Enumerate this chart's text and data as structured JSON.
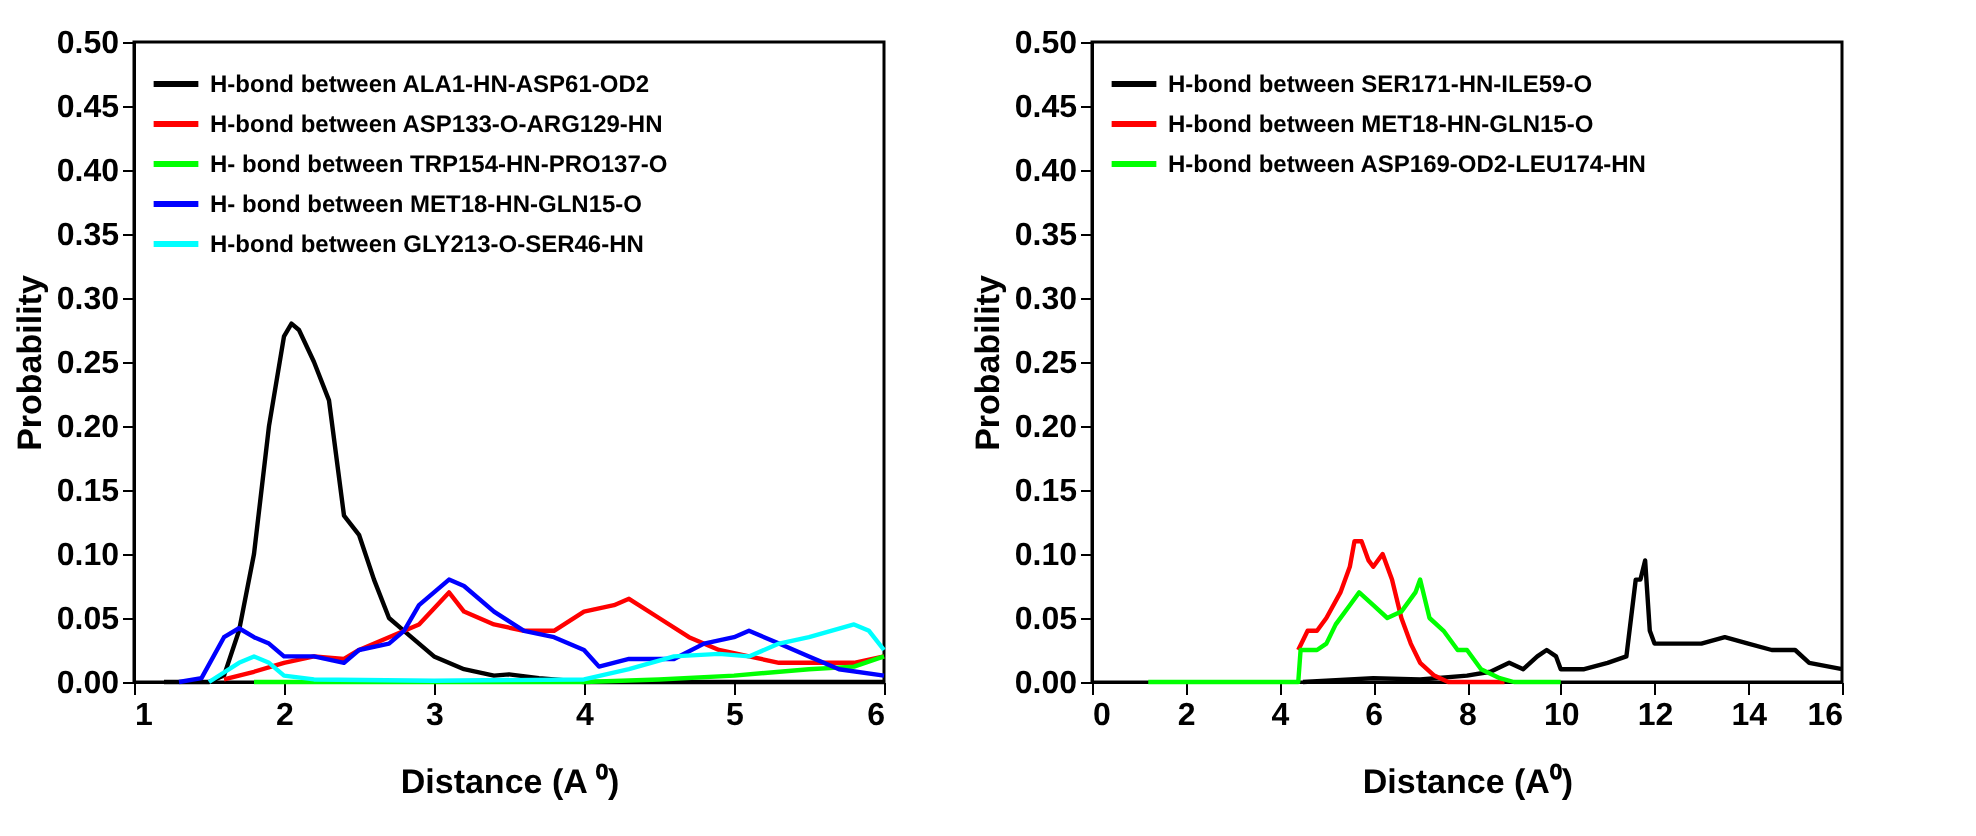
{
  "chart_data": [
    {
      "type": "line",
      "xlabel": "Distance (A ⁰)",
      "ylabel": "Probability",
      "xlim": [
        1,
        6
      ],
      "xticks": [
        1,
        2,
        3,
        4,
        5,
        6
      ],
      "ylim": [
        0,
        0.5
      ],
      "yticks": [
        {
          "value": 0,
          "label": "0.00"
        },
        0.05,
        {
          "value": 0.1,
          "label": "0.10"
        },
        0.15,
        {
          "value": 0.2,
          "label": "0.20"
        },
        0.25,
        {
          "value": 0.3,
          "label": "0.30"
        },
        0.35,
        {
          "value": 0.4,
          "label": "0.40"
        },
        0.45,
        {
          "value": 0.5,
          "label": "0.50"
        }
      ],
      "grid": false,
      "legend": "top left",
      "marker": "none",
      "line_style": "solid",
      "series": [
        {
          "name": "H-bond between ALA1-HN-ASP61-OD2",
          "color": "#000000",
          "x": [
            1.2,
            1.5,
            1.6,
            1.7,
            1.8,
            1.9,
            2.0,
            2.05,
            2.1,
            2.2,
            2.3,
            2.4,
            2.5,
            2.6,
            2.7,
            2.8,
            2.9,
            3.0,
            3.2,
            3.4,
            3.5,
            3.7,
            4.0,
            5.0,
            6.0
          ],
          "values": [
            0,
            0,
            0.005,
            0.04,
            0.1,
            0.2,
            0.27,
            0.28,
            0.275,
            0.25,
            0.22,
            0.13,
            0.115,
            0.08,
            0.05,
            0.04,
            0.03,
            0.02,
            0.01,
            0.005,
            0.006,
            0.003,
            0,
            0,
            0
          ]
        },
        {
          "name": "H-bond between ASP133-O-ARG129-HN",
          "color": "#ff0000",
          "x": [
            1.6,
            1.8,
            2.0,
            2.2,
            2.4,
            2.5,
            2.7,
            2.9,
            3.1,
            3.2,
            3.4,
            3.6,
            3.8,
            4.0,
            4.2,
            4.3,
            4.5,
            4.7,
            4.9,
            5.1,
            5.3,
            5.5,
            5.8,
            6.0
          ],
          "values": [
            0.002,
            0.008,
            0.015,
            0.02,
            0.018,
            0.025,
            0.035,
            0.045,
            0.07,
            0.055,
            0.045,
            0.04,
            0.04,
            0.055,
            0.06,
            0.065,
            0.05,
            0.035,
            0.025,
            0.02,
            0.015,
            0.015,
            0.015,
            0.02
          ]
        },
        {
          "name": "H- bond between TRP154-HN-PRO137-O",
          "color": "#00ff00",
          "x": [
            1.8,
            4.0,
            4.5,
            5.0,
            5.5,
            5.8,
            6.0
          ],
          "values": [
            0,
            0,
            0.002,
            0.005,
            0.01,
            0.012,
            0.02
          ]
        },
        {
          "name": "H- bond between MET18-HN-GLN15-O",
          "color": "#0000ff",
          "x": [
            1.3,
            1.45,
            1.6,
            1.7,
            1.8,
            1.9,
            2.0,
            2.2,
            2.4,
            2.5,
            2.7,
            2.8,
            2.9,
            3.0,
            3.1,
            3.2,
            3.4,
            3.6,
            3.8,
            4.0,
            4.1,
            4.3,
            4.6,
            4.8,
            5.0,
            5.1,
            5.3,
            5.5,
            5.7,
            6.0
          ],
          "values": [
            0,
            0.003,
            0.035,
            0.042,
            0.035,
            0.03,
            0.02,
            0.02,
            0.015,
            0.025,
            0.03,
            0.04,
            0.06,
            0.07,
            0.08,
            0.075,
            0.055,
            0.04,
            0.035,
            0.025,
            0.012,
            0.018,
            0.018,
            0.03,
            0.035,
            0.04,
            0.03,
            0.02,
            0.01,
            0.005
          ]
        },
        {
          "name": "H-bond between GLY213-O-SER46-HN",
          "color": "#00ffff",
          "x": [
            1.5,
            1.7,
            1.8,
            1.9,
            2.0,
            2.2,
            3.0,
            4.0,
            4.3,
            4.6,
            4.9,
            5.1,
            5.3,
            5.5,
            5.8,
            5.9,
            6.0
          ],
          "values": [
            0,
            0.015,
            0.02,
            0.015,
            0.005,
            0.002,
            0.001,
            0.002,
            0.01,
            0.02,
            0.022,
            0.02,
            0.03,
            0.035,
            0.045,
            0.04,
            0.025
          ]
        }
      ]
    },
    {
      "type": "line",
      "xlabel": "Distance (A⁰)",
      "ylabel": "Probability",
      "xlim": [
        0,
        16
      ],
      "xticks": [
        0,
        2,
        4,
        6,
        8,
        10,
        12,
        14,
        16
      ],
      "ylim": [
        0,
        0.5
      ],
      "yticks": [
        {
          "value": 0,
          "label": "0.00"
        },
        0.05,
        {
          "value": 0.1,
          "label": "0.10"
        },
        0.15,
        {
          "value": 0.2,
          "label": "0.20"
        },
        0.25,
        {
          "value": 0.3,
          "label": "0.30"
        },
        0.35,
        {
          "value": 0.4,
          "label": "0.40"
        },
        0.45,
        {
          "value": 0.5,
          "label": "0.50"
        }
      ],
      "grid": false,
      "legend": "top left",
      "marker": "none",
      "line_style": "solid",
      "series": [
        {
          "name": "H-bond between SER171-HN-ILE59-O",
          "color": "#000000",
          "x": [
            4.5,
            5.5,
            6,
            7,
            8,
            8.5,
            8.9,
            9.2,
            9.5,
            9.7,
            9.9,
            10,
            10.5,
            11,
            11.4,
            11.6,
            11.7,
            11.8,
            11.9,
            12.0,
            12.5,
            13,
            13.5,
            14,
            14.5,
            15,
            15.3,
            16
          ],
          "values": [
            0,
            0.002,
            0.003,
            0.002,
            0.005,
            0.008,
            0.015,
            0.01,
            0.02,
            0.025,
            0.02,
            0.01,
            0.01,
            0.015,
            0.02,
            0.08,
            0.08,
            0.095,
            0.04,
            0.03,
            0.03,
            0.03,
            0.035,
            0.03,
            0.025,
            0.025,
            0.015,
            0.01
          ]
        },
        {
          "name": "H-bond between MET18-HN-GLN15-O",
          "color": "#ff0000",
          "x": [
            4.4,
            4.6,
            4.8,
            5.0,
            5.3,
            5.5,
            5.6,
            5.75,
            5.9,
            6.0,
            6.2,
            6.4,
            6.6,
            6.8,
            7.0,
            7.3,
            7.6,
            8.8
          ],
          "values": [
            0.025,
            0.04,
            0.04,
            0.05,
            0.07,
            0.09,
            0.11,
            0.11,
            0.095,
            0.09,
            0.1,
            0.08,
            0.05,
            0.03,
            0.015,
            0.005,
            0,
            0
          ]
        },
        {
          "name": "H-bond between ASP169-OD2-LEU174-HN",
          "color": "#00ff00",
          "x": [
            1.2,
            4.4,
            4.45,
            4.8,
            5.0,
            5.2,
            5.5,
            5.7,
            6.0,
            6.3,
            6.6,
            6.9,
            7.0,
            7.2,
            7.5,
            7.8,
            8.0,
            8.3,
            8.7,
            9.0,
            10
          ],
          "values": [
            0,
            0,
            0.025,
            0.025,
            0.03,
            0.045,
            0.06,
            0.07,
            0.06,
            0.05,
            0.055,
            0.07,
            0.08,
            0.05,
            0.04,
            0.025,
            0.025,
            0.01,
            0.003,
            0,
            0
          ]
        }
      ]
    }
  ]
}
